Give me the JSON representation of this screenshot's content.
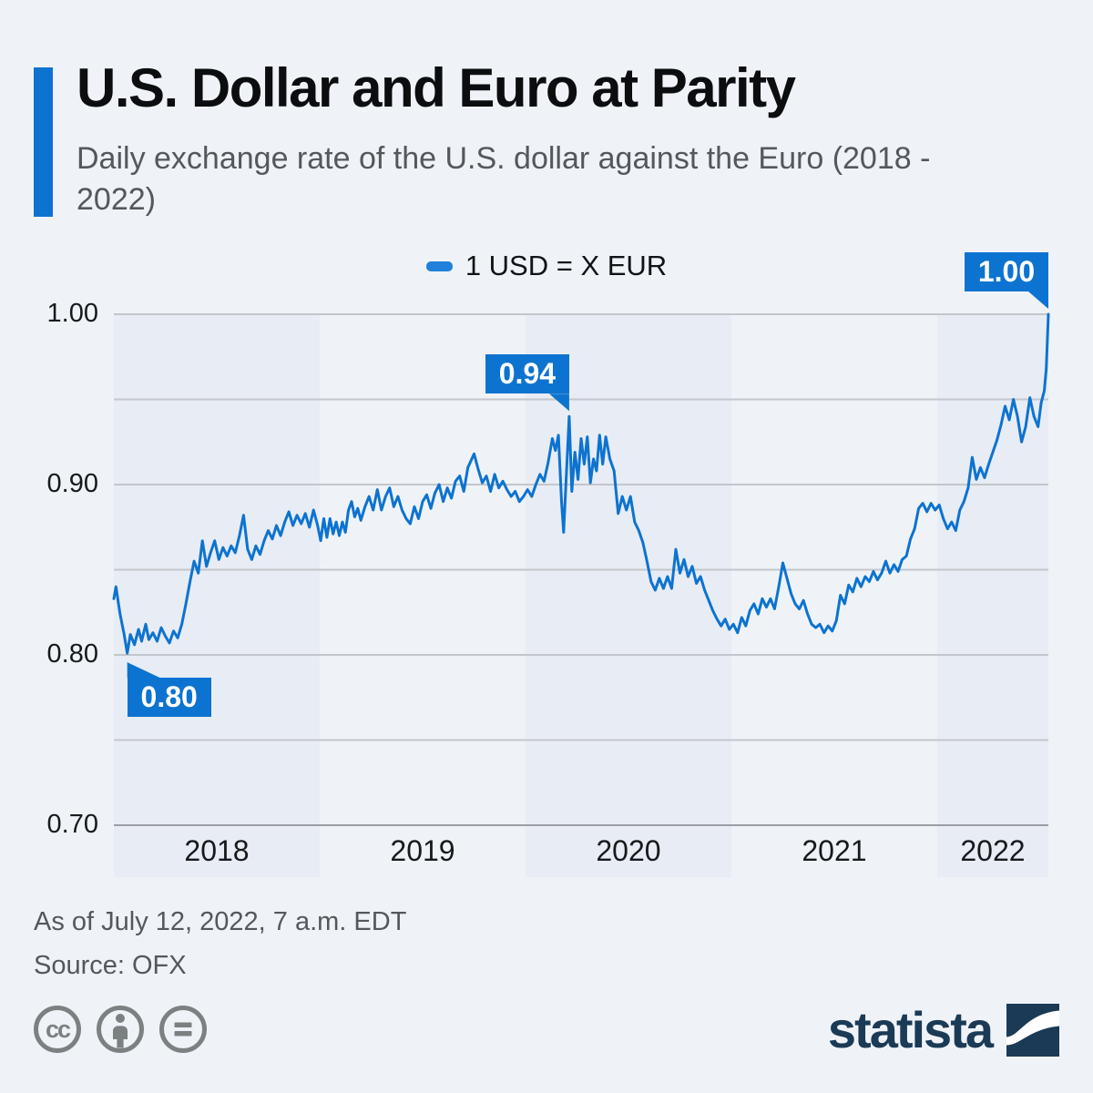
{
  "colors": {
    "background": "#eff3f8",
    "accent_blue": "#0d73d0",
    "legend_marker_blue": "#2181da",
    "year_band": "#e8ecf4",
    "grid_line": "#c3c6cb",
    "axis_line": "#9b9ea3",
    "title_text": "#0b0d0f",
    "subtitle_text": "#54585d",
    "tick_text": "#17191c",
    "footer_text": "#54585c",
    "icon_gray": "#7b8081",
    "statista_navy": "#1b3a55"
  },
  "header": {
    "title": "U.S. Dollar and Euro at Parity",
    "subtitle": "Daily exchange rate of the U.S. dollar against the Euro (2018 - 2022)"
  },
  "legend": {
    "label": "1 USD = X EUR"
  },
  "footer": {
    "as_of": "As of July 12, 2022, 7 a.m. EDT",
    "source": "Source: OFX"
  },
  "branding": {
    "wordmark": "statista"
  },
  "icons": {
    "license": [
      "cc-icon",
      "attribution-person-icon",
      "no-derivatives-equals-icon"
    ],
    "logo": "statista-swoosh-icon"
  },
  "chart_data": {
    "type": "line",
    "title": "U.S. Dollar and Euro at Parity",
    "xlabel": "",
    "ylabel": "1 USD = X EUR",
    "xlim": [
      2018.0,
      2022.54
    ],
    "ylim": [
      0.7,
      1.0
    ],
    "grid": true,
    "legend_position": "top-center",
    "gridlines": [
      1.0,
      0.95,
      0.9,
      0.85,
      0.8,
      0.75,
      0.7
    ],
    "y_ticks": [
      {
        "label": "1.00",
        "value": 1.0
      },
      {
        "label": "0.90",
        "value": 0.9
      },
      {
        "label": "0.80",
        "value": 0.8
      },
      {
        "label": "0.70",
        "value": 0.7
      }
    ],
    "x_ticks": [
      {
        "label": "2018",
        "center": 2018.5
      },
      {
        "label": "2019",
        "center": 2019.5
      },
      {
        "label": "2020",
        "center": 2020.5
      },
      {
        "label": "2021",
        "center": 2021.5
      },
      {
        "label": "2022",
        "center": 2022.27
      }
    ],
    "shaded_bands": [
      [
        2018.0,
        2019.0
      ],
      [
        2020.0,
        2021.0
      ],
      [
        2022.0,
        2022.54
      ]
    ],
    "annotations": [
      {
        "label": "0.80",
        "t": 2018.065,
        "v": 0.801,
        "pointer": "up-left"
      },
      {
        "label": "0.94",
        "t": 2020.212,
        "v": 0.94,
        "pointer": "down-right"
      },
      {
        "label": "1.00",
        "t": 2022.54,
        "v": 1.0,
        "pointer": "down-right"
      }
    ],
    "series": [
      {
        "name": "1 USD = X EUR",
        "color": "#0d73d0",
        "points": [
          [
            2018.0,
            0.833
          ],
          [
            2018.01,
            0.84
          ],
          [
            2018.03,
            0.824
          ],
          [
            2018.05,
            0.812
          ],
          [
            2018.065,
            0.801
          ],
          [
            2018.08,
            0.812
          ],
          [
            2018.1,
            0.806
          ],
          [
            2018.12,
            0.815
          ],
          [
            2018.135,
            0.808
          ],
          [
            2018.155,
            0.818
          ],
          [
            2018.17,
            0.809
          ],
          [
            2018.19,
            0.813
          ],
          [
            2018.21,
            0.808
          ],
          [
            2018.23,
            0.816
          ],
          [
            2018.25,
            0.811
          ],
          [
            2018.27,
            0.807
          ],
          [
            2018.29,
            0.814
          ],
          [
            2018.31,
            0.81
          ],
          [
            2018.33,
            0.818
          ],
          [
            2018.35,
            0.83
          ],
          [
            2018.37,
            0.843
          ],
          [
            2018.39,
            0.855
          ],
          [
            2018.41,
            0.848
          ],
          [
            2018.43,
            0.867
          ],
          [
            2018.45,
            0.852
          ],
          [
            2018.47,
            0.86
          ],
          [
            2018.49,
            0.867
          ],
          [
            2018.51,
            0.856
          ],
          [
            2018.53,
            0.863
          ],
          [
            2018.55,
            0.858
          ],
          [
            2018.57,
            0.864
          ],
          [
            2018.59,
            0.86
          ],
          [
            2018.61,
            0.87
          ],
          [
            2018.63,
            0.882
          ],
          [
            2018.65,
            0.862
          ],
          [
            2018.67,
            0.856
          ],
          [
            2018.69,
            0.864
          ],
          [
            2018.71,
            0.859
          ],
          [
            2018.73,
            0.867
          ],
          [
            2018.75,
            0.873
          ],
          [
            2018.77,
            0.868
          ],
          [
            2018.79,
            0.876
          ],
          [
            2018.81,
            0.87
          ],
          [
            2018.83,
            0.878
          ],
          [
            2018.85,
            0.884
          ],
          [
            2018.87,
            0.876
          ],
          [
            2018.89,
            0.882
          ],
          [
            2018.91,
            0.877
          ],
          [
            2018.93,
            0.883
          ],
          [
            2018.95,
            0.875
          ],
          [
            2018.97,
            0.885
          ],
          [
            2018.99,
            0.876
          ],
          [
            2019.005,
            0.867
          ],
          [
            2019.02,
            0.88
          ],
          [
            2019.035,
            0.869
          ],
          [
            2019.05,
            0.88
          ],
          [
            2019.065,
            0.871
          ],
          [
            2019.08,
            0.878
          ],
          [
            2019.095,
            0.87
          ],
          [
            2019.11,
            0.878
          ],
          [
            2019.125,
            0.872
          ],
          [
            2019.14,
            0.885
          ],
          [
            2019.155,
            0.89
          ],
          [
            2019.17,
            0.881
          ],
          [
            2019.185,
            0.886
          ],
          [
            2019.2,
            0.879
          ],
          [
            2019.22,
            0.887
          ],
          [
            2019.24,
            0.893
          ],
          [
            2019.26,
            0.885
          ],
          [
            2019.28,
            0.897
          ],
          [
            2019.3,
            0.885
          ],
          [
            2019.32,
            0.893
          ],
          [
            2019.34,
            0.898
          ],
          [
            2019.36,
            0.887
          ],
          [
            2019.38,
            0.893
          ],
          [
            2019.4,
            0.885
          ],
          [
            2019.42,
            0.88
          ],
          [
            2019.44,
            0.877
          ],
          [
            2019.46,
            0.887
          ],
          [
            2019.48,
            0.88
          ],
          [
            2019.5,
            0.89
          ],
          [
            2019.52,
            0.894
          ],
          [
            2019.54,
            0.886
          ],
          [
            2019.56,
            0.895
          ],
          [
            2019.58,
            0.9
          ],
          [
            2019.6,
            0.89
          ],
          [
            2019.62,
            0.898
          ],
          [
            2019.64,
            0.892
          ],
          [
            2019.66,
            0.902
          ],
          [
            2019.68,
            0.905
          ],
          [
            2019.7,
            0.896
          ],
          [
            2019.72,
            0.91
          ],
          [
            2019.75,
            0.918
          ],
          [
            2019.77,
            0.909
          ],
          [
            2019.79,
            0.901
          ],
          [
            2019.81,
            0.905
          ],
          [
            2019.83,
            0.896
          ],
          [
            2019.85,
            0.906
          ],
          [
            2019.87,
            0.898
          ],
          [
            2019.89,
            0.902
          ],
          [
            2019.91,
            0.897
          ],
          [
            2019.93,
            0.893
          ],
          [
            2019.95,
            0.896
          ],
          [
            2019.97,
            0.89
          ],
          [
            2019.99,
            0.893
          ],
          [
            2020.01,
            0.897
          ],
          [
            2020.03,
            0.893
          ],
          [
            2020.05,
            0.9
          ],
          [
            2020.07,
            0.906
          ],
          [
            2020.09,
            0.902
          ],
          [
            2020.11,
            0.913
          ],
          [
            2020.13,
            0.927
          ],
          [
            2020.145,
            0.92
          ],
          [
            2020.16,
            0.929
          ],
          [
            2020.175,
            0.89
          ],
          [
            2020.185,
            0.872
          ],
          [
            2020.2,
            0.91
          ],
          [
            2020.212,
            0.94
          ],
          [
            2020.225,
            0.896
          ],
          [
            2020.24,
            0.919
          ],
          [
            2020.255,
            0.903
          ],
          [
            2020.27,
            0.927
          ],
          [
            2020.285,
            0.912
          ],
          [
            2020.3,
            0.928
          ],
          [
            2020.315,
            0.901
          ],
          [
            2020.33,
            0.915
          ],
          [
            2020.345,
            0.908
          ],
          [
            2020.36,
            0.929
          ],
          [
            2020.375,
            0.912
          ],
          [
            2020.39,
            0.928
          ],
          [
            2020.41,
            0.915
          ],
          [
            2020.43,
            0.908
          ],
          [
            2020.45,
            0.883
          ],
          [
            2020.47,
            0.893
          ],
          [
            2020.49,
            0.885
          ],
          [
            2020.51,
            0.893
          ],
          [
            2020.53,
            0.878
          ],
          [
            2020.55,
            0.873
          ],
          [
            2020.57,
            0.866
          ],
          [
            2020.59,
            0.855
          ],
          [
            2020.61,
            0.843
          ],
          [
            2020.63,
            0.838
          ],
          [
            2020.65,
            0.845
          ],
          [
            2020.67,
            0.839
          ],
          [
            2020.69,
            0.846
          ],
          [
            2020.71,
            0.839
          ],
          [
            2020.73,
            0.862
          ],
          [
            2020.75,
            0.848
          ],
          [
            2020.77,
            0.856
          ],
          [
            2020.79,
            0.846
          ],
          [
            2020.81,
            0.852
          ],
          [
            2020.83,
            0.842
          ],
          [
            2020.85,
            0.846
          ],
          [
            2020.87,
            0.838
          ],
          [
            2020.89,
            0.832
          ],
          [
            2020.91,
            0.826
          ],
          [
            2020.93,
            0.821
          ],
          [
            2020.95,
            0.817
          ],
          [
            2020.97,
            0.821
          ],
          [
            2020.99,
            0.815
          ],
          [
            2021.01,
            0.818
          ],
          [
            2021.03,
            0.813
          ],
          [
            2021.05,
            0.822
          ],
          [
            2021.07,
            0.817
          ],
          [
            2021.09,
            0.826
          ],
          [
            2021.11,
            0.83
          ],
          [
            2021.13,
            0.824
          ],
          [
            2021.15,
            0.833
          ],
          [
            2021.17,
            0.828
          ],
          [
            2021.19,
            0.833
          ],
          [
            2021.21,
            0.827
          ],
          [
            2021.23,
            0.84
          ],
          [
            2021.25,
            0.854
          ],
          [
            2021.27,
            0.845
          ],
          [
            2021.29,
            0.836
          ],
          [
            2021.31,
            0.83
          ],
          [
            2021.33,
            0.827
          ],
          [
            2021.35,
            0.832
          ],
          [
            2021.37,
            0.824
          ],
          [
            2021.39,
            0.818
          ],
          [
            2021.41,
            0.816
          ],
          [
            2021.43,
            0.818
          ],
          [
            2021.45,
            0.813
          ],
          [
            2021.47,
            0.817
          ],
          [
            2021.49,
            0.814
          ],
          [
            2021.51,
            0.82
          ],
          [
            2021.53,
            0.835
          ],
          [
            2021.55,
            0.83
          ],
          [
            2021.57,
            0.841
          ],
          [
            2021.59,
            0.837
          ],
          [
            2021.61,
            0.845
          ],
          [
            2021.63,
            0.84
          ],
          [
            2021.65,
            0.846
          ],
          [
            2021.67,
            0.843
          ],
          [
            2021.69,
            0.849
          ],
          [
            2021.71,
            0.844
          ],
          [
            2021.73,
            0.848
          ],
          [
            2021.75,
            0.855
          ],
          [
            2021.77,
            0.848
          ],
          [
            2021.79,
            0.853
          ],
          [
            2021.81,
            0.849
          ],
          [
            2021.83,
            0.856
          ],
          [
            2021.85,
            0.858
          ],
          [
            2021.87,
            0.868
          ],
          [
            2021.89,
            0.874
          ],
          [
            2021.91,
            0.886
          ],
          [
            2021.93,
            0.889
          ],
          [
            2021.95,
            0.884
          ],
          [
            2021.97,
            0.889
          ],
          [
            2021.99,
            0.885
          ],
          [
            2022.01,
            0.888
          ],
          [
            2022.03,
            0.88
          ],
          [
            2022.05,
            0.874
          ],
          [
            2022.07,
            0.878
          ],
          [
            2022.09,
            0.873
          ],
          [
            2022.11,
            0.885
          ],
          [
            2022.13,
            0.89
          ],
          [
            2022.15,
            0.898
          ],
          [
            2022.17,
            0.916
          ],
          [
            2022.19,
            0.903
          ],
          [
            2022.21,
            0.91
          ],
          [
            2022.23,
            0.904
          ],
          [
            2022.25,
            0.912
          ],
          [
            2022.27,
            0.919
          ],
          [
            2022.29,
            0.926
          ],
          [
            2022.31,
            0.935
          ],
          [
            2022.33,
            0.946
          ],
          [
            2022.35,
            0.938
          ],
          [
            2022.37,
            0.95
          ],
          [
            2022.39,
            0.94
          ],
          [
            2022.41,
            0.925
          ],
          [
            2022.43,
            0.934
          ],
          [
            2022.45,
            0.951
          ],
          [
            2022.47,
            0.94
          ],
          [
            2022.49,
            0.934
          ],
          [
            2022.505,
            0.948
          ],
          [
            2022.52,
            0.955
          ],
          [
            2022.53,
            0.968
          ],
          [
            2022.54,
            1.0
          ]
        ]
      }
    ]
  }
}
